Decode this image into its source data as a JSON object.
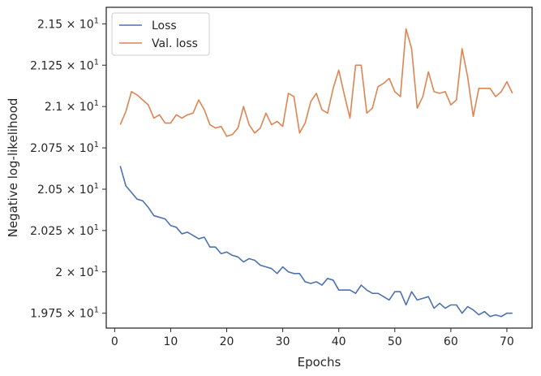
{
  "chart_data": {
    "type": "line",
    "xlabel": "Epochs",
    "ylabel": "Negative log-likelihood",
    "xlim": [
      -1.5,
      74.5
    ],
    "ylim": [
      19.66,
      21.6
    ],
    "x_ticks": [
      0,
      10,
      20,
      30,
      40,
      50,
      60,
      70
    ],
    "x_tick_labels": [
      "0",
      "10",
      "20",
      "30",
      "40",
      "50",
      "60",
      "70"
    ],
    "y_ticks": [
      19.75,
      20.0,
      20.25,
      20.5,
      20.75,
      21.0,
      21.25,
      21.5
    ],
    "y_tick_labels": [
      {
        "mantissa": "1.975",
        "exp": "1"
      },
      {
        "mantissa": "2",
        "exp": "1"
      },
      {
        "mantissa": "2.025",
        "exp": "1"
      },
      {
        "mantissa": "2.05",
        "exp": "1"
      },
      {
        "mantissa": "2.075",
        "exp": "1"
      },
      {
        "mantissa": "2.1",
        "exp": "1"
      },
      {
        "mantissa": "2.125",
        "exp": "1"
      },
      {
        "mantissa": "2.15",
        "exp": "1"
      }
    ],
    "legend_position": "top-left",
    "x": [
      1,
      2,
      3,
      4,
      5,
      6,
      7,
      8,
      9,
      10,
      11,
      12,
      13,
      14,
      15,
      16,
      17,
      18,
      19,
      20,
      21,
      22,
      23,
      24,
      25,
      26,
      27,
      28,
      29,
      30,
      31,
      32,
      33,
      34,
      35,
      36,
      37,
      38,
      39,
      40,
      41,
      42,
      43,
      44,
      45,
      46,
      47,
      48,
      49,
      50,
      51,
      52,
      53,
      54,
      55,
      56,
      57,
      58,
      59,
      60,
      61,
      62,
      63,
      64,
      65,
      66,
      67,
      68,
      69,
      70,
      71
    ],
    "series": [
      {
        "name": "Loss",
        "color": "#4c72b0",
        "values": [
          20.64,
          20.52,
          20.48,
          20.44,
          20.43,
          20.39,
          20.34,
          20.33,
          20.32,
          20.28,
          20.27,
          20.23,
          20.24,
          20.22,
          20.2,
          20.21,
          20.15,
          20.15,
          20.11,
          20.12,
          20.1,
          20.09,
          20.06,
          20.08,
          20.07,
          20.04,
          20.03,
          20.02,
          19.99,
          20.03,
          20.0,
          19.99,
          19.99,
          19.94,
          19.93,
          19.94,
          19.92,
          19.96,
          19.95,
          19.89,
          19.89,
          19.89,
          19.87,
          19.92,
          19.89,
          19.87,
          19.87,
          19.85,
          19.83,
          19.88,
          19.88,
          19.8,
          19.88,
          19.83,
          19.84,
          19.85,
          19.78,
          19.81,
          19.78,
          19.8,
          19.8,
          19.75,
          19.79,
          19.77,
          19.74,
          19.76,
          19.73,
          19.74,
          19.73,
          19.75,
          19.75
        ]
      },
      {
        "name": "Val. loss",
        "color": "#dd8452",
        "values": [
          20.89,
          20.97,
          21.09,
          21.07,
          21.04,
          21.01,
          20.93,
          20.95,
          20.9,
          20.9,
          20.95,
          20.93,
          20.95,
          20.96,
          21.04,
          20.98,
          20.89,
          20.87,
          20.88,
          20.82,
          20.83,
          20.87,
          21.0,
          20.89,
          20.84,
          20.87,
          20.96,
          20.89,
          20.91,
          20.88,
          21.08,
          21.06,
          20.84,
          20.9,
          21.03,
          21.08,
          20.98,
          20.96,
          21.11,
          21.22,
          21.07,
          20.93,
          21.25,
          21.25,
          20.96,
          20.99,
          21.12,
          21.14,
          21.17,
          21.09,
          21.06,
          21.47,
          21.35,
          20.99,
          21.06,
          21.21,
          21.09,
          21.08,
          21.09,
          21.01,
          21.04,
          21.35,
          21.18,
          20.94,
          21.11,
          21.11,
          21.11,
          21.06,
          21.09,
          21.15,
          21.08
        ]
      }
    ]
  }
}
